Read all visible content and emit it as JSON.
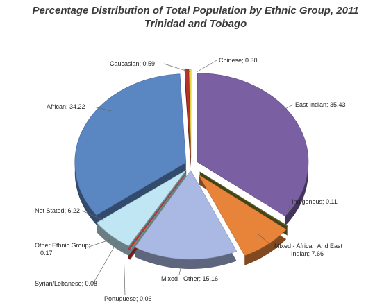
{
  "chart_data": {
    "type": "pie",
    "title": "Percentage Distribution of Total Population by Ethnic Group, 2011",
    "subtitle": "Trinidad and Tobago",
    "unit": "%",
    "slices": [
      {
        "name": "Chinese",
        "value": 0.3,
        "label": "Chinese; 0.30",
        "color": "#e8e04a"
      },
      {
        "name": "East Indian",
        "value": 35.43,
        "label": "East Indian; 35.43",
        "color": "#7b5fa3"
      },
      {
        "name": "Indigenous",
        "value": 0.11,
        "label": "Indigenous; 0.11",
        "color": "#7a7a2e"
      },
      {
        "name": "Mixed - African And East Indian",
        "value": 7.66,
        "label_lines": [
          "Mixed - African And East",
          "Indian; 7.66"
        ],
        "color": "#e8843a"
      },
      {
        "name": "Mixed - Other",
        "value": 15.16,
        "label": "Mixed - Other; 15.16",
        "color": "#a9b9e3"
      },
      {
        "name": "Portuguese",
        "value": 0.06,
        "label": "Portuguese; 0.06",
        "color": "#f2d23c"
      },
      {
        "name": "Syrian/Lebanese",
        "value": 0.08,
        "label": "Syrian/Lebanese; 0.08",
        "color": "#3aa0dc"
      },
      {
        "name": "Other Ethnic Group",
        "value": 0.17,
        "label_lines": [
          "Other Ethnic Group;",
          "0.17"
        ],
        "color": "#e0312f"
      },
      {
        "name": "Not Stated",
        "value": 6.22,
        "label": "Not Stated; 6.22",
        "color": "#bfe6f2"
      },
      {
        "name": "African",
        "value": 34.22,
        "label": "African; 34.22",
        "color": "#5a86c2"
      },
      {
        "name": "Caucasian",
        "value": 0.59,
        "label": "Caucasian; 0.59",
        "color": "#b8322a"
      }
    ]
  }
}
